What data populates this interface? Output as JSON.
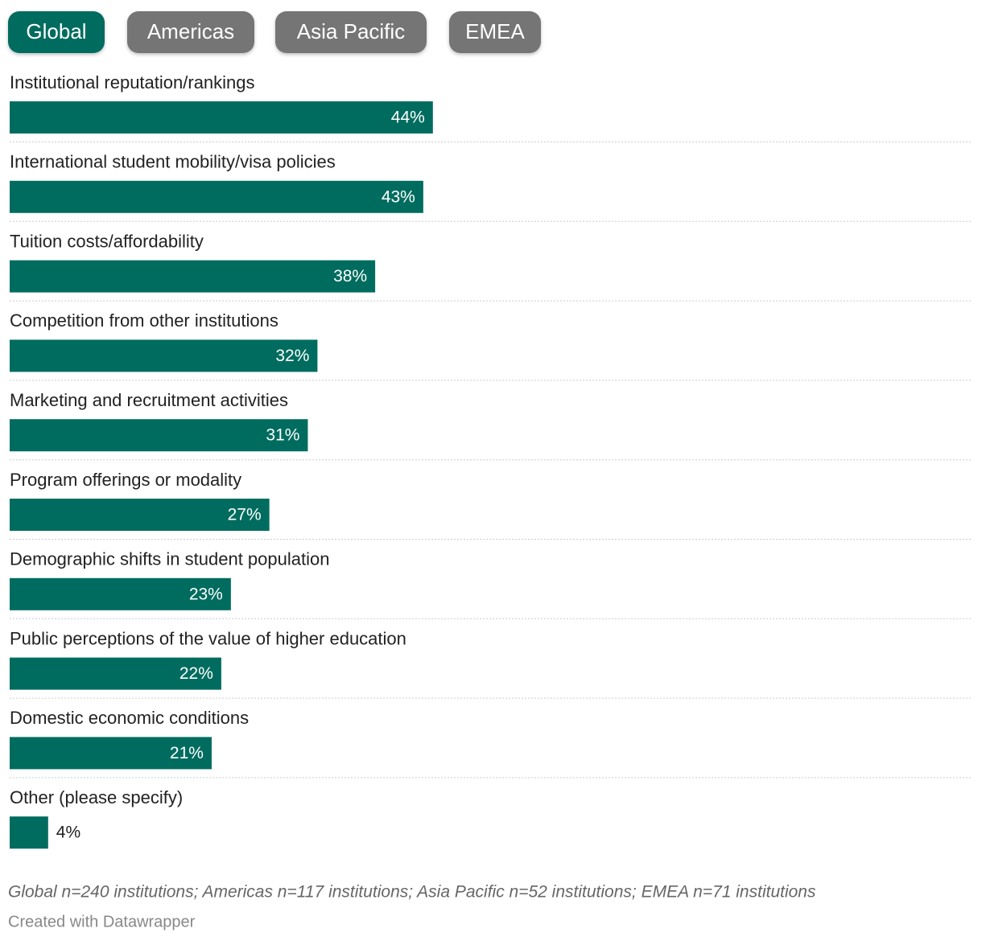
{
  "tabs": [
    "Global",
    "Americas",
    "Asia Pacific",
    "EMEA"
  ],
  "chart_data": {
    "type": "bar",
    "orientation": "horizontal",
    "categories": [
      "Institutional reputation/rankings",
      "International student mobility/visa policies",
      "Tuition costs/affordability",
      "Competition from other institutions",
      "Marketing and recruitment activities",
      "Program offerings or modality",
      "Demographic shifts in student population",
      "Public perceptions of the value of higher education",
      "Domestic economic conditions",
      "Other (please specify)"
    ],
    "values": [
      44,
      43,
      38,
      32,
      31,
      27,
      23,
      22,
      21,
      4
    ],
    "value_labels": [
      "44%",
      "43%",
      "38%",
      "32%",
      "31%",
      "27%",
      "23%",
      "22%",
      "21%",
      "4%"
    ],
    "color": "#006c5f",
    "xlim": [
      0,
      100
    ],
    "note": "Global n=240 institutions; Americas n=117 institutions; Asia Pacific n=52 institutions; EMEA n=71 institutions",
    "credit": "Created with Datawrapper"
  }
}
